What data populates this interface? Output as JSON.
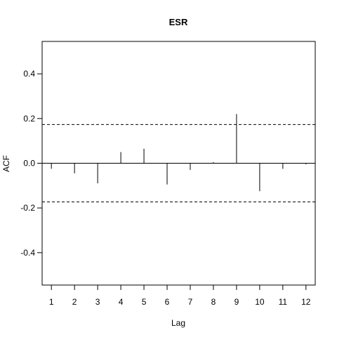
{
  "chart_data": {
    "type": "bar",
    "title": "ESR",
    "xlabel": "Lag",
    "ylabel": "ACF",
    "xlim": [
      0.6,
      12.4
    ],
    "ylim": [
      -0.545,
      0.545
    ],
    "x_ticks": [
      1,
      2,
      3,
      4,
      5,
      6,
      7,
      8,
      9,
      10,
      11,
      12
    ],
    "y_ticks": [
      -0.4,
      -0.2,
      0.0,
      0.2,
      0.4
    ],
    "y_tick_labels": [
      "-0.4",
      "-0.2",
      "0.0",
      "0.2",
      "0.4"
    ],
    "series": [
      {
        "lags": [
          1,
          2,
          3,
          4,
          5,
          6,
          7,
          8,
          9,
          10,
          11,
          12
        ],
        "values": [
          -0.025,
          -0.045,
          -0.09,
          0.05,
          0.065,
          -0.095,
          -0.03,
          0.005,
          0.22,
          -0.125,
          -0.025,
          -0.005
        ]
      }
    ],
    "confidence_bounds": [
      0.173,
      -0.173
    ],
    "zero_line": true,
    "grid": false,
    "legend": "none"
  },
  "colors": {
    "bars": "#000000",
    "axes": "#000000",
    "background": "#ffffff"
  }
}
